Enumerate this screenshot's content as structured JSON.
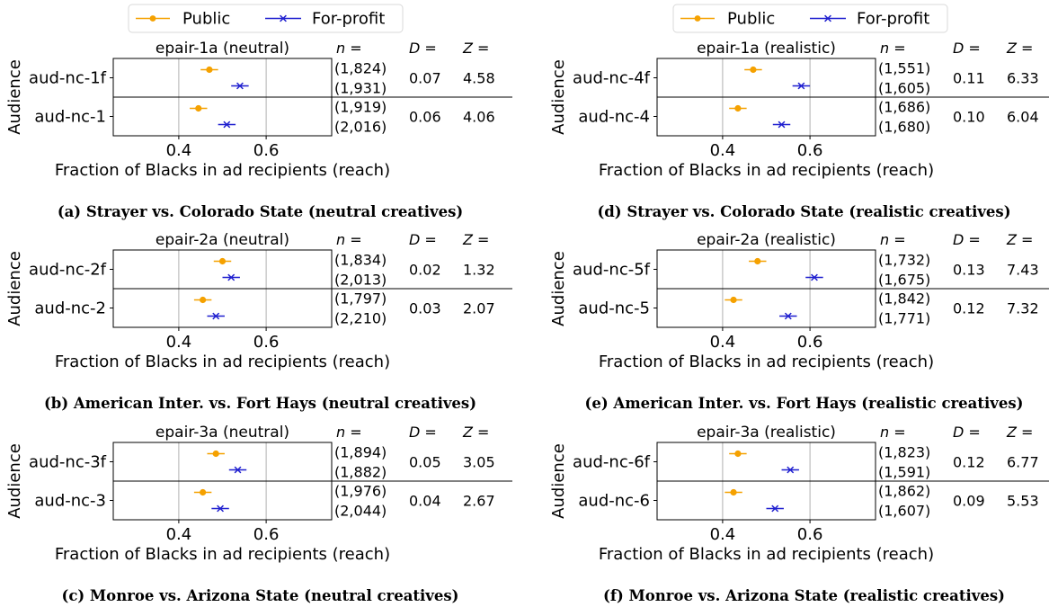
{
  "legend": {
    "items": [
      {
        "name": "Public",
        "color": "#f5a100",
        "marker": "circle"
      },
      {
        "name": "For-profit",
        "color": "#1f1fcf",
        "marker": "x"
      }
    ]
  },
  "stat_headers": {
    "n": "n =",
    "d": "D =",
    "z": "Z ="
  },
  "chart_data": [
    {
      "type": "scatter",
      "id": "a",
      "title": "epair-1a (neutral)",
      "caption": "(a) Strayer vs. Colorado State (neutral creatives)",
      "xlabel": "Fraction of Blacks in ad recipients (reach)",
      "ylabel": "Audience",
      "xlim": [
        0.25,
        0.75
      ],
      "xticks": [
        "0.4",
        "0.6"
      ],
      "xtick_values": [
        0.4,
        0.6
      ],
      "grid": true,
      "rows": [
        {
          "audience": "aud-nc-1f",
          "public": 0.47,
          "public_err": 0.02,
          "forprofit": 0.54,
          "forprofit_err": 0.02,
          "n_public": "(1,824)",
          "n_forprofit": "(1,931)",
          "D": "0.07",
          "Z": "4.58"
        },
        {
          "audience": "aud-nc-1",
          "public": 0.445,
          "public_err": 0.02,
          "forprofit": 0.51,
          "forprofit_err": 0.02,
          "n_public": "(1,919)",
          "n_forprofit": "(2,016)",
          "D": "0.06",
          "Z": "4.06"
        }
      ]
    },
    {
      "type": "scatter",
      "id": "b",
      "title": "epair-2a (neutral)",
      "caption": "(b) American Inter. vs. Fort Hays (neutral creatives)",
      "xlabel": "Fraction of Blacks in ad recipients (reach)",
      "ylabel": "Audience",
      "xlim": [
        0.25,
        0.75
      ],
      "xticks": [
        "0.4",
        "0.6"
      ],
      "xtick_values": [
        0.4,
        0.6
      ],
      "grid": true,
      "rows": [
        {
          "audience": "aud-nc-2f",
          "public": 0.5,
          "public_err": 0.02,
          "forprofit": 0.52,
          "forprofit_err": 0.02,
          "n_public": "(1,834)",
          "n_forprofit": "(2,013)",
          "D": "0.02",
          "Z": "1.32"
        },
        {
          "audience": "aud-nc-2",
          "public": 0.455,
          "public_err": 0.02,
          "forprofit": 0.485,
          "forprofit_err": 0.02,
          "n_public": "(1,797)",
          "n_forprofit": "(2,210)",
          "D": "0.03",
          "Z": "2.07"
        }
      ]
    },
    {
      "type": "scatter",
      "id": "c",
      "title": "epair-3a (neutral)",
      "caption": "(c) Monroe vs. Arizona State (neutral creatives)",
      "xlabel": "Fraction of Blacks in ad recipients (reach)",
      "ylabel": "Audience",
      "xlim": [
        0.25,
        0.75
      ],
      "xticks": [
        "0.4",
        "0.6"
      ],
      "xtick_values": [
        0.4,
        0.6
      ],
      "grid": true,
      "rows": [
        {
          "audience": "aud-nc-3f",
          "public": 0.485,
          "public_err": 0.02,
          "forprofit": 0.535,
          "forprofit_err": 0.02,
          "n_public": "(1,894)",
          "n_forprofit": "(1,882)",
          "D": "0.05",
          "Z": "3.05"
        },
        {
          "audience": "aud-nc-3",
          "public": 0.455,
          "public_err": 0.02,
          "forprofit": 0.495,
          "forprofit_err": 0.02,
          "n_public": "(1,976)",
          "n_forprofit": "(2,044)",
          "D": "0.04",
          "Z": "2.67"
        }
      ]
    },
    {
      "type": "scatter",
      "id": "d",
      "title": "epair-1a (realistic)",
      "caption": "(d) Strayer vs. Colorado State (realistic creatives)",
      "xlabel": "Fraction of Blacks in ad recipients (reach)",
      "ylabel": "Audience",
      "xlim": [
        0.25,
        0.75
      ],
      "xticks": [
        "0.4",
        "0.6"
      ],
      "xtick_values": [
        0.4,
        0.6
      ],
      "grid": true,
      "rows": [
        {
          "audience": "aud-nc-4f",
          "public": 0.47,
          "public_err": 0.02,
          "forprofit": 0.58,
          "forprofit_err": 0.02,
          "n_public": "(1,551)",
          "n_forprofit": "(1,605)",
          "D": "0.11",
          "Z": "6.33"
        },
        {
          "audience": "aud-nc-4",
          "public": 0.435,
          "public_err": 0.02,
          "forprofit": 0.535,
          "forprofit_err": 0.02,
          "n_public": "(1,686)",
          "n_forprofit": "(1,680)",
          "D": "0.10",
          "Z": "6.04"
        }
      ]
    },
    {
      "type": "scatter",
      "id": "e",
      "title": "epair-2a (realistic)",
      "caption": "(e) American Inter. vs. Fort Hays (realistic creatives)",
      "xlabel": "Fraction of Blacks in ad recipients (reach)",
      "ylabel": "Audience",
      "xlim": [
        0.25,
        0.75
      ],
      "xticks": [
        "0.4",
        "0.6"
      ],
      "xtick_values": [
        0.4,
        0.6
      ],
      "grid": true,
      "rows": [
        {
          "audience": "aud-nc-5f",
          "public": 0.48,
          "public_err": 0.02,
          "forprofit": 0.61,
          "forprofit_err": 0.02,
          "n_public": "(1,732)",
          "n_forprofit": "(1,675)",
          "D": "0.13",
          "Z": "7.43"
        },
        {
          "audience": "aud-nc-5",
          "public": 0.425,
          "public_err": 0.02,
          "forprofit": 0.55,
          "forprofit_err": 0.02,
          "n_public": "(1,842)",
          "n_forprofit": "(1,771)",
          "D": "0.12",
          "Z": "7.32"
        }
      ]
    },
    {
      "type": "scatter",
      "id": "f",
      "title": "epair-3a (realistic)",
      "caption": "(f) Monroe vs. Arizona State (realistic creatives)",
      "xlabel": "Fraction of Blacks in ad recipients (reach)",
      "ylabel": "Audience",
      "xlim": [
        0.25,
        0.75
      ],
      "xticks": [
        "0.4",
        "0.6"
      ],
      "xtick_values": [
        0.4,
        0.6
      ],
      "grid": true,
      "rows": [
        {
          "audience": "aud-nc-6f",
          "public": 0.435,
          "public_err": 0.02,
          "forprofit": 0.555,
          "forprofit_err": 0.02,
          "n_public": "(1,823)",
          "n_forprofit": "(1,591)",
          "D": "0.12",
          "Z": "6.77"
        },
        {
          "audience": "aud-nc-6",
          "public": 0.425,
          "public_err": 0.02,
          "forprofit": 0.52,
          "forprofit_err": 0.02,
          "n_public": "(1,862)",
          "n_forprofit": "(1,607)",
          "D": "0.09",
          "Z": "5.53"
        }
      ]
    }
  ]
}
